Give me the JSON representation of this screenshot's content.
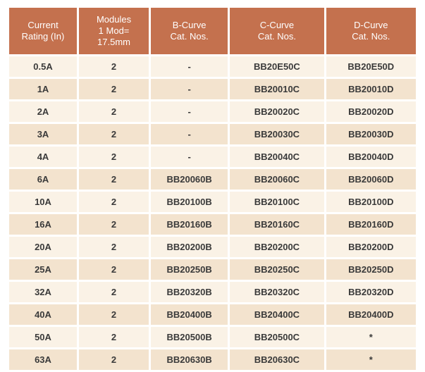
{
  "colors": {
    "header_bg": "#C4714E",
    "row_light": "#FAF2E6",
    "row_dark": "#F3E3CE",
    "text": "#3a3a3a"
  },
  "table": {
    "headers": [
      {
        "name": "current-rating",
        "lines": [
          "Current",
          "Rating (In)"
        ]
      },
      {
        "name": "modules",
        "lines": [
          "Modules",
          "1 Mod=",
          "17.5mm"
        ]
      },
      {
        "name": "b-curve",
        "lines": [
          "B-Curve",
          "Cat. Nos."
        ]
      },
      {
        "name": "c-curve",
        "lines": [
          "C-Curve",
          "Cat. Nos."
        ]
      },
      {
        "name": "d-curve",
        "lines": [
          "D-Curve",
          "Cat. Nos."
        ]
      }
    ],
    "rows": [
      [
        "0.5A",
        "2",
        "-",
        "BB20E50C",
        "BB20E50D"
      ],
      [
        "1A",
        "2",
        "-",
        "BB20010C",
        "BB20010D"
      ],
      [
        "2A",
        "2",
        "-",
        "BB20020C",
        "BB20020D"
      ],
      [
        "3A",
        "2",
        "-",
        "BB20030C",
        "BB20030D"
      ],
      [
        "4A",
        "2",
        "-",
        "BB20040C",
        "BB20040D"
      ],
      [
        "6A",
        "2",
        "BB20060B",
        "BB20060C",
        "BB20060D"
      ],
      [
        "10A",
        "2",
        "BB20100B",
        "BB20100C",
        "BB20100D"
      ],
      [
        "16A",
        "2",
        "BB20160B",
        "BB20160C",
        "BB20160D"
      ],
      [
        "20A",
        "2",
        "BB20200B",
        "BB20200C",
        "BB20200D"
      ],
      [
        "25A",
        "2",
        "BB20250B",
        "BB20250C",
        "BB20250D"
      ],
      [
        "32A",
        "2",
        "BB20320B",
        "BB20320C",
        "BB20320D"
      ],
      [
        "40A",
        "2",
        "BB20400B",
        "BB20400C",
        "BB20400D"
      ],
      [
        "50A",
        "2",
        "BB20500B",
        "BB20500C",
        "*"
      ],
      [
        "63A",
        "2",
        "BB20630B",
        "BB20630C",
        "*"
      ]
    ]
  }
}
